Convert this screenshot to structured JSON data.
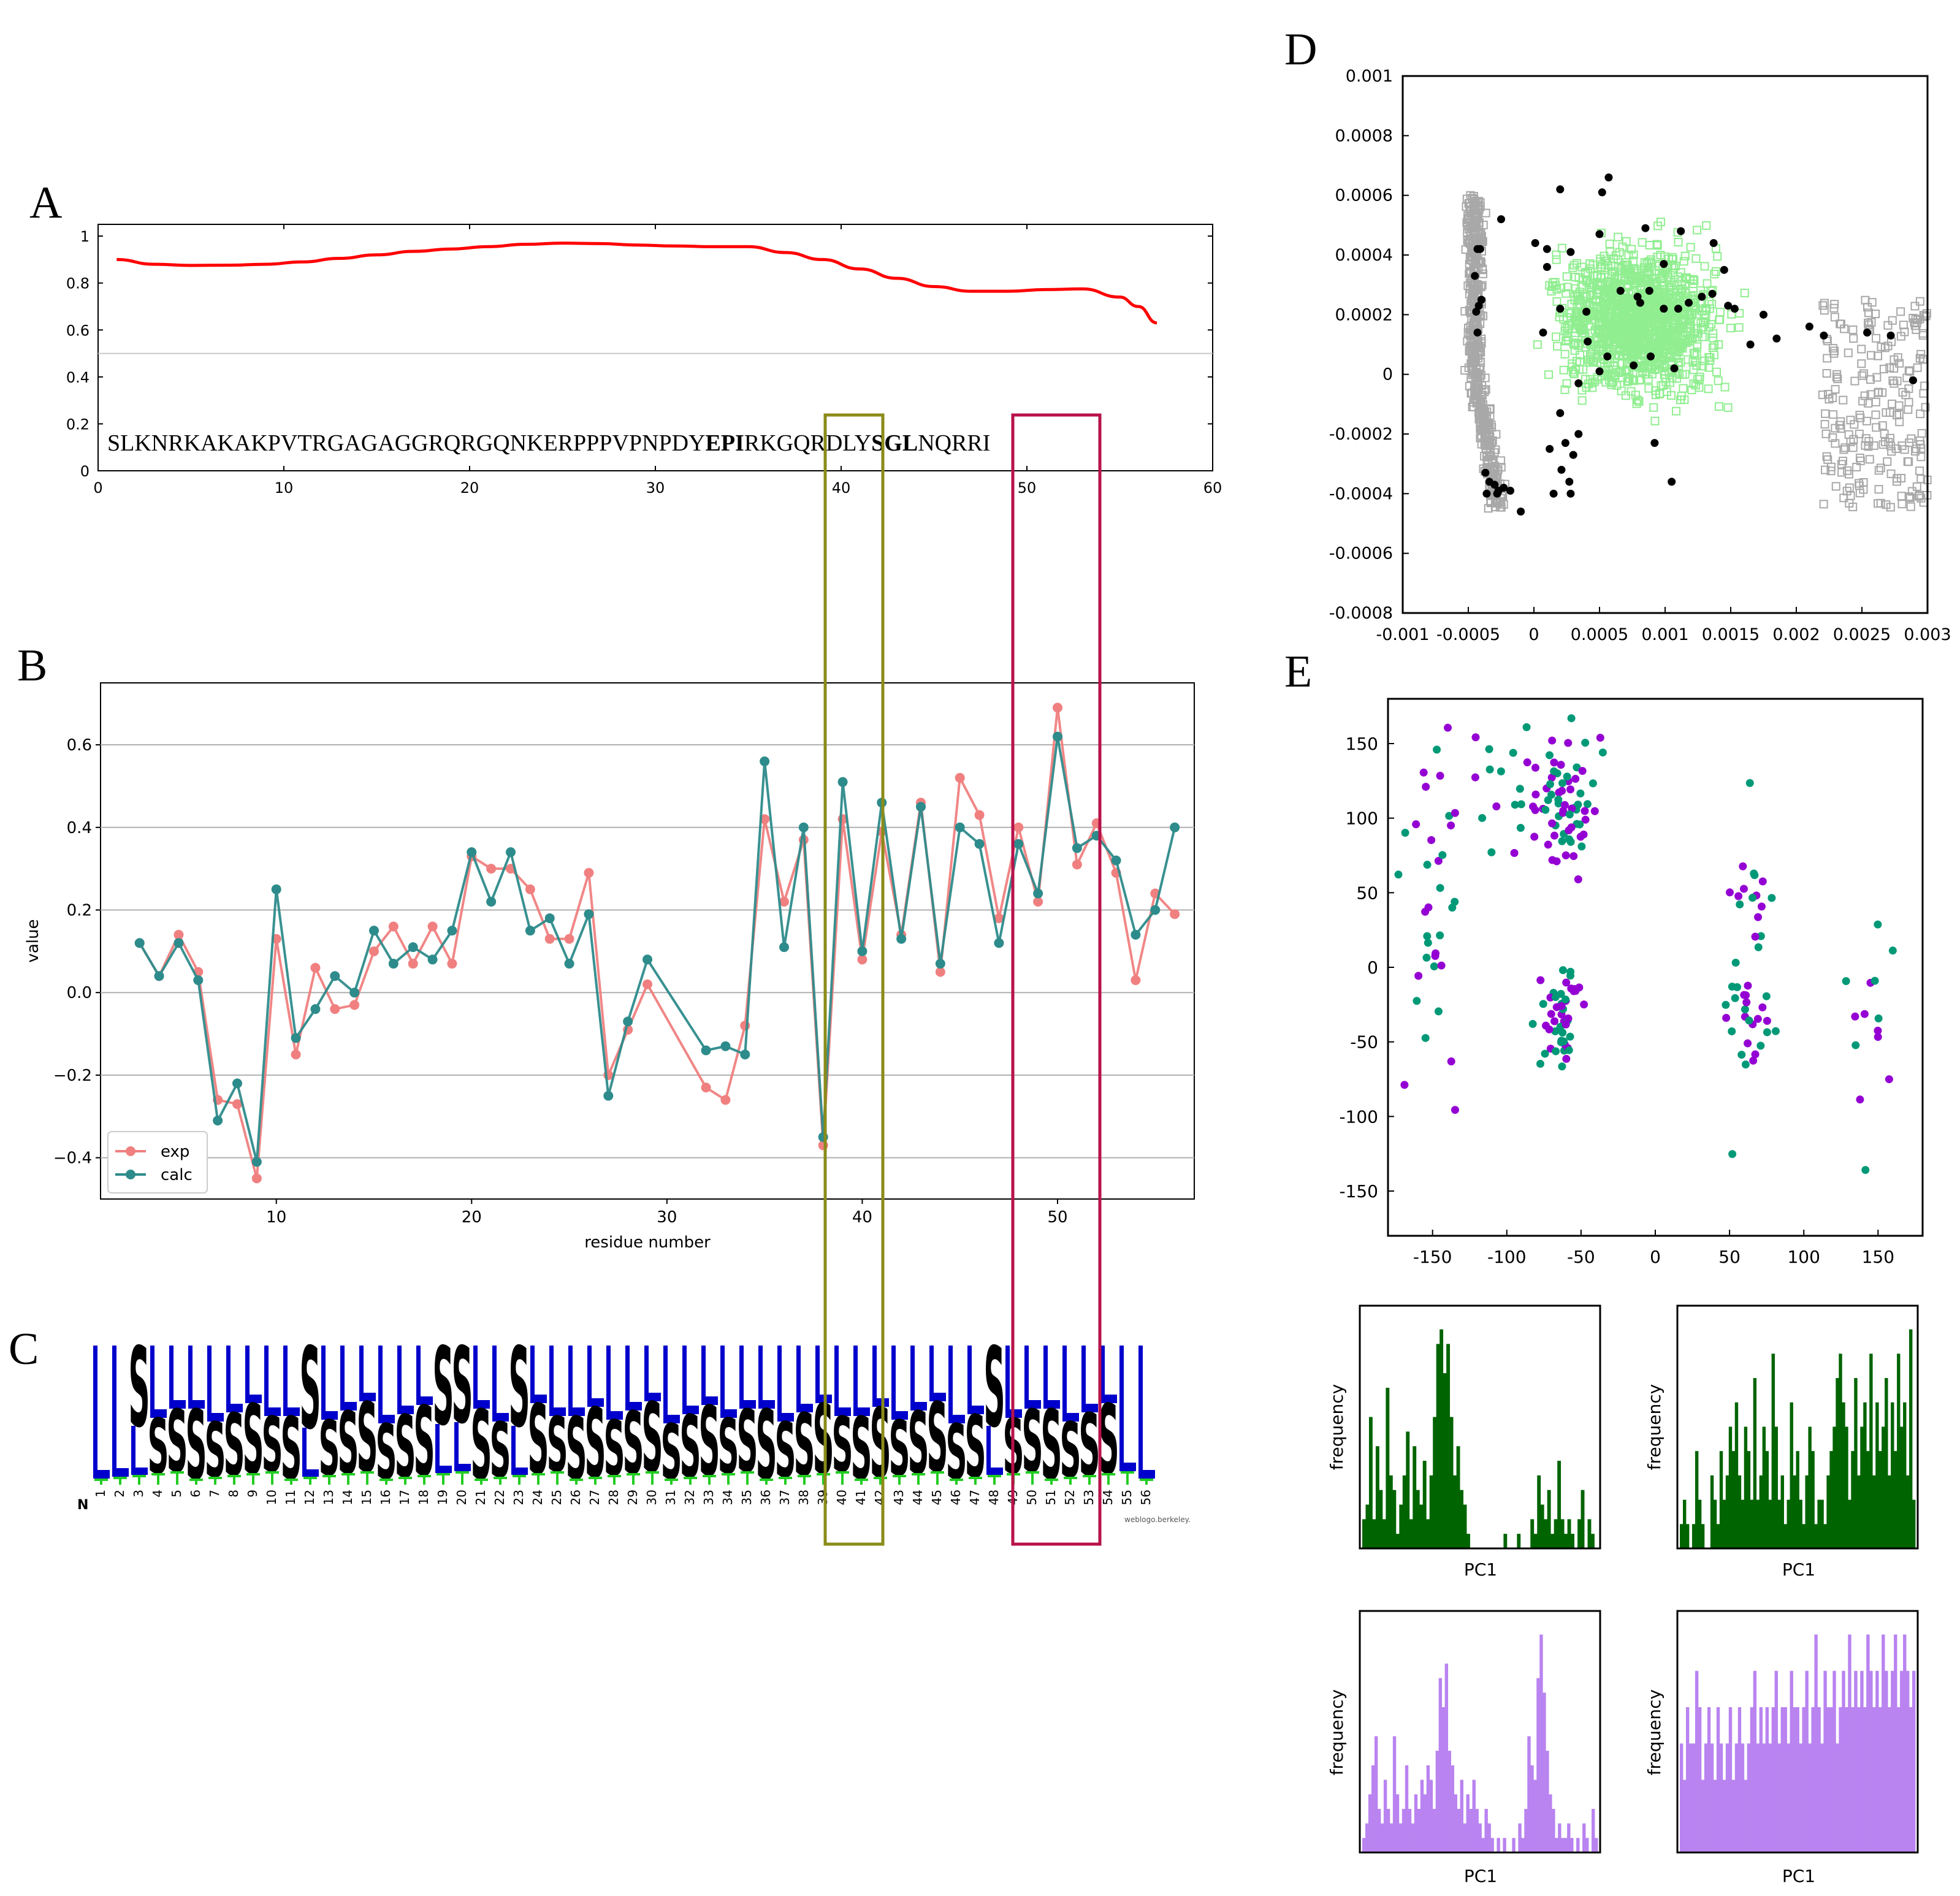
{
  "chart_data": [
    {
      "panel": "A",
      "type": "line",
      "xlim": [
        0,
        60
      ],
      "ylim": [
        0,
        1.05
      ],
      "xticks": [
        0,
        10,
        20,
        30,
        40,
        50,
        60
      ],
      "yticks": [
        0,
        0.2,
        0.4,
        0.6,
        0.8,
        1
      ],
      "threshold": 0.5,
      "colors": {
        "curve": "#ff0000",
        "threshold": "#c8c8c8"
      },
      "sequence": [
        "SLKNRKAKAKPVTRGAGAGGRQRGQNKERPPPVPNPDY",
        "EPI",
        "RKGQRDLY",
        "SGL",
        "NQRRI"
      ],
      "x": [
        1,
        3,
        5,
        7,
        9,
        11,
        13,
        15,
        17,
        19,
        21,
        23,
        25,
        27,
        29,
        31,
        33,
        35,
        37,
        39,
        41,
        43,
        45,
        47,
        49,
        51,
        53,
        55,
        56,
        57
      ],
      "y": [
        0.9,
        0.88,
        0.875,
        0.876,
        0.88,
        0.89,
        0.905,
        0.92,
        0.935,
        0.945,
        0.955,
        0.965,
        0.97,
        0.968,
        0.962,
        0.958,
        0.955,
        0.955,
        0.93,
        0.9,
        0.86,
        0.82,
        0.785,
        0.765,
        0.765,
        0.772,
        0.775,
        0.74,
        0.7,
        0.63
      ]
    },
    {
      "panel": "B",
      "type": "line",
      "xlabel": "residue number",
      "ylabel": "value",
      "xlim": [
        1,
        57
      ],
      "ylim": [
        -0.5,
        0.75
      ],
      "xticks": [
        10,
        20,
        30,
        40,
        50
      ],
      "yticks": [
        -0.4,
        -0.2,
        0.0,
        0.2,
        0.4,
        0.6
      ],
      "ytick_labels": [
        "−0.4",
        "−0.2",
        "0.0",
        "0.2",
        "0.4",
        "0.6"
      ],
      "legend": [
        "exp",
        "calc"
      ],
      "series": [
        {
          "name": "exp",
          "color": "#f08080",
          "x": [
            3,
            4,
            5,
            6,
            7,
            8,
            9,
            10,
            11,
            12,
            13,
            14,
            15,
            16,
            17,
            18,
            19,
            20,
            21,
            22,
            23,
            24,
            25,
            26,
            27,
            28,
            29,
            32,
            33,
            34,
            35,
            36,
            37,
            38,
            39,
            40,
            41,
            42,
            43,
            44,
            45,
            46,
            47,
            48,
            49,
            50,
            51,
            52,
            53,
            54,
            55,
            56
          ],
          "values": [
            0.12,
            0.04,
            0.14,
            0.05,
            -0.26,
            -0.27,
            -0.45,
            0.13,
            -0.15,
            0.06,
            -0.04,
            -0.03,
            0.1,
            0.16,
            0.07,
            0.16,
            0.07,
            0.33,
            0.3,
            0.3,
            0.25,
            0.13,
            0.13,
            0.29,
            -0.2,
            -0.09,
            0.02,
            -0.23,
            -0.26,
            -0.08,
            0.42,
            0.22,
            0.37,
            -0.37,
            0.42,
            0.08,
            0.39,
            0.14,
            0.46,
            0.05,
            0.52,
            0.43,
            0.18,
            0.4,
            0.22,
            0.69,
            0.31,
            0.41,
            0.29,
            0.03,
            0.24,
            0.19
          ]
        },
        {
          "name": "calc",
          "color": "#2e8b8b",
          "x": [
            3,
            4,
            5,
            6,
            7,
            8,
            9,
            10,
            11,
            12,
            13,
            14,
            15,
            16,
            17,
            18,
            19,
            20,
            21,
            22,
            23,
            24,
            25,
            26,
            27,
            28,
            29,
            32,
            33,
            34,
            35,
            36,
            37,
            38,
            39,
            40,
            41,
            42,
            43,
            44,
            45,
            46,
            47,
            48,
            49,
            50,
            51,
            52,
            53,
            54,
            55,
            56
          ],
          "values": [
            0.12,
            0.04,
            0.12,
            0.03,
            -0.31,
            -0.22,
            -0.41,
            0.25,
            -0.11,
            -0.04,
            0.04,
            0.0,
            0.15,
            0.07,
            0.11,
            0.08,
            0.15,
            0.34,
            0.22,
            0.34,
            0.15,
            0.18,
            0.07,
            0.19,
            -0.25,
            -0.07,
            0.08,
            -0.14,
            -0.13,
            -0.15,
            0.56,
            0.11,
            0.4,
            -0.35,
            0.51,
            0.1,
            0.46,
            0.13,
            0.45,
            0.07,
            0.4,
            0.36,
            0.12,
            0.36,
            0.24,
            0.62,
            0.35,
            0.38,
            0.32,
            0.14,
            0.2,
            0.4
          ]
        }
      ]
    },
    {
      "panel": "C",
      "type": "sequence-logo",
      "positions": [
        "1",
        "2",
        "3",
        "4",
        "5",
        "6",
        "7",
        "8",
        "9",
        "10",
        "11",
        "12",
        "13",
        "14",
        "15",
        "16",
        "17",
        "18",
        "19",
        "20",
        "21",
        "22",
        "23",
        "24",
        "25",
        "26",
        "27",
        "28",
        "29",
        "30",
        "31",
        "32",
        "33",
        "34",
        "35",
        "36",
        "37",
        "38",
        "39",
        "40",
        "41",
        "42",
        "43",
        "44",
        "45",
        "46",
        "47",
        "48",
        "49",
        "50",
        "51",
        "52",
        "53",
        "54",
        "55",
        "56"
      ],
      "dominant": [
        "L",
        "L",
        "S",
        "L",
        "L",
        "L",
        "L",
        "L",
        "L",
        "L",
        "L",
        "S",
        "L",
        "L",
        "L",
        "L",
        "L",
        "L",
        "S",
        "S",
        "L",
        "L",
        "S",
        "L",
        "L",
        "L",
        "L",
        "L",
        "L",
        "L",
        "L",
        "L",
        "L",
        "L",
        "L",
        "L",
        "L",
        "L",
        "L",
        "L",
        "L",
        "L",
        "L",
        "L",
        "L",
        "L",
        "L",
        "S",
        "L",
        "L",
        "L",
        "L",
        "L",
        "L",
        "L",
        "L"
      ],
      "secondary": [
        "",
        "",
        "L",
        "S",
        "S",
        "S",
        "S",
        "S",
        "S",
        "S",
        "S",
        "L",
        "S",
        "S",
        "S",
        "S",
        "S",
        "S",
        "L",
        "L",
        "S",
        "S",
        "L",
        "S",
        "S",
        "S",
        "S",
        "S",
        "S",
        "S",
        "S",
        "S",
        "S",
        "S",
        "S",
        "S",
        "S",
        "S",
        "S",
        "S",
        "S",
        "S",
        "S",
        "S",
        "S",
        "S",
        "S",
        "L",
        "S",
        "S",
        "S",
        "S",
        "S",
        "S",
        "",
        ""
      ],
      "n_label": "N",
      "credit": "weblogo.berkeley.",
      "colors": {
        "L": "#0000cc",
        "S": "#000000",
        "T": "#22cc22"
      }
    },
    {
      "panel": "D",
      "type": "scatter",
      "xlim": [
        -0.001,
        0.003
      ],
      "ylim": [
        -0.0008,
        0.001
      ],
      "xtick_labels": [
        "-0.001",
        "-0.0005",
        "0",
        "0.0005",
        "0.001",
        "0.0015",
        "0.002",
        "0.0025",
        "0.003"
      ],
      "ytick_labels": [
        "0.001",
        "0.0008",
        "0.0006",
        "0.0004",
        "0.0002",
        "0",
        "-0.0002",
        "-0.0004",
        "-0.0006",
        "-0.0008"
      ],
      "series_names": [
        "grey-squares",
        "green-squares",
        "black-points"
      ],
      "colors": {
        "grey": "#a8a8a8",
        "green": "#90ee90",
        "black": "#000000"
      },
      "black_points": [
        [
          -0.00043,
          0.00042
        ],
        [
          -0.00041,
          0.00042
        ],
        [
          -0.00045,
          0.00033
        ],
        [
          -0.00042,
          0.00023
        ],
        [
          -0.00044,
          0.00021
        ],
        [
          -0.0004,
          0.00025
        ],
        [
          -0.00043,
          0.00014
        ],
        [
          -0.00025,
          0.00052
        ],
        [
          -0.00037,
          -0.00033
        ],
        [
          -0.00034,
          -0.00036
        ],
        [
          -0.00036,
          -0.0004
        ],
        [
          -0.0003,
          -0.00037
        ],
        [
          -0.00027,
          -0.00039
        ],
        [
          -0.00023,
          -0.00038
        ],
        [
          -0.00028,
          -0.0004
        ],
        [
          -0.00018,
          -0.00039
        ],
        [
          -0.0001,
          -0.00046
        ],
        [
          0.00012,
          -0.00025
        ],
        [
          0.00021,
          -0.00032
        ],
        [
          0.00027,
          -0.00036
        ],
        [
          0.00028,
          -0.0004
        ],
        [
          0.00015,
          -0.0004
        ],
        [
          0.0002,
          0.00062
        ],
        [
          0.00052,
          0.00061
        ],
        [
          0.00057,
          0.00066
        ],
        [
          1e-05,
          0.00044
        ],
        [
          0.0001,
          0.00042
        ],
        [
          0.0001,
          0.00036
        ],
        [
          0.00028,
          0.00041
        ],
        [
          0.0005,
          0.00047
        ],
        [
          0.00085,
          0.00049
        ],
        [
          0.00099,
          0.00037
        ],
        [
          0.00112,
          0.00048
        ],
        [
          0.00137,
          0.00044
        ],
        [
          0.00145,
          0.00035
        ],
        [
          0.00153,
          0.00022
        ],
        [
          0.00175,
          0.0002
        ],
        [
          0.0002,
          0.00022
        ],
        [
          0.0004,
          0.00021
        ],
        [
          0.00066,
          0.00028
        ],
        [
          0.00079,
          0.00026
        ],
        [
          0.00081,
          0.00024
        ],
        [
          0.00088,
          0.00028
        ],
        [
          0.00099,
          0.00022
        ],
        [
          0.0011,
          0.00022
        ],
        [
          0.00118,
          0.00024
        ],
        [
          0.00128,
          0.00026
        ],
        [
          0.00136,
          0.00027
        ],
        [
          0.00148,
          0.00023
        ],
        [
          0.00165,
          0.0001
        ],
        [
          0.00185,
          0.00012
        ],
        [
          0.0021,
          0.00016
        ],
        [
          0.00221,
          0.00013
        ],
        [
          0.00254,
          0.00014
        ],
        [
          0.00272,
          0.00013
        ],
        [
          0.00289,
          -2e-05
        ],
        [
          7e-05,
          0.00014
        ],
        [
          0.00041,
          0.00011
        ],
        [
          0.0005,
          1e-05
        ],
        [
          0.00056,
          6e-05
        ],
        [
          0.00076,
          3e-05
        ],
        [
          0.00089,
          6e-05
        ],
        [
          0.00107,
          2e-05
        ],
        [
          0.00034,
          -3e-05
        ],
        [
          0.0002,
          -0.00013
        ],
        [
          0.00024,
          -0.00023
        ],
        [
          0.0003,
          -0.00027
        ],
        [
          0.00034,
          -0.0002
        ],
        [
          0.00092,
          -0.00023
        ],
        [
          0.00105,
          -0.00036
        ]
      ]
    },
    {
      "panel": "E",
      "type": "scatter",
      "xlim": [
        -180,
        180
      ],
      "ylim": [
        -180,
        180
      ],
      "xtick_labels": [
        "-150",
        "-100",
        "-50",
        "0",
        "50",
        "100",
        "150"
      ],
      "ytick_labels": [
        "150",
        "100",
        "50",
        "0",
        "-50",
        "-100",
        "-150"
      ],
      "series_names": [
        "purple",
        "teal"
      ],
      "colors": {
        "purple": "#9400d3",
        "teal": "#009977"
      }
    },
    {
      "panel": "E-hist",
      "type": "bar",
      "xlabel": "PC1",
      "ylabel": "frequency",
      "panels": [
        {
          "name": "hist-green-left",
          "color": "#006400",
          "values": [
            2,
            3,
            9,
            2,
            7,
            4,
            2,
            11,
            5,
            4,
            1,
            3,
            5,
            8,
            2,
            7,
            4,
            3,
            6,
            2,
            5,
            9,
            14,
            15,
            12,
            14,
            9,
            5,
            7,
            4,
            3,
            1,
            0,
            0,
            0,
            0,
            0,
            0,
            0,
            0,
            0,
            0,
            1,
            0,
            0,
            0,
            1,
            0,
            0,
            0,
            2,
            1,
            5,
            3,
            2,
            4,
            1,
            2,
            6,
            2,
            1,
            2,
            1,
            0,
            2,
            4,
            0,
            2,
            1,
            0
          ]
        },
        {
          "name": "hist-green-right",
          "color": "#006400",
          "values": [
            1,
            2,
            1,
            0,
            1,
            4,
            2,
            1,
            0,
            0,
            3,
            2,
            1,
            4,
            2,
            3,
            5,
            4,
            6,
            3,
            2,
            5,
            4,
            2,
            7,
            2,
            3,
            5,
            4,
            2,
            8,
            5,
            2,
            3,
            1,
            2,
            6,
            3,
            4,
            2,
            1,
            3,
            5,
            4,
            1,
            2,
            2,
            1,
            3,
            4,
            5,
            7,
            8,
            6,
            5,
            2,
            4,
            7,
            3,
            5,
            6,
            4,
            8,
            3,
            6,
            4,
            5,
            7,
            3,
            6,
            4,
            8,
            5,
            6,
            3,
            9,
            2
          ]
        },
        {
          "name": "hist-purple-left",
          "color": "#b983f0",
          "values": [
            1,
            2,
            4,
            6,
            8,
            3,
            2,
            5,
            3,
            2,
            8,
            4,
            2,
            3,
            6,
            3,
            2,
            4,
            3,
            5,
            4,
            6,
            5,
            3,
            7,
            12,
            10,
            13,
            7,
            6,
            4,
            3,
            5,
            2,
            4,
            3,
            5,
            3,
            2,
            1,
            3,
            2,
            1,
            0,
            1,
            0,
            1,
            0,
            0,
            1,
            0,
            2,
            1,
            3,
            8,
            6,
            5,
            12,
            15,
            11,
            7,
            4,
            3,
            1,
            2,
            1,
            1,
            2,
            1,
            0,
            1,
            0,
            2,
            1,
            0,
            3,
            1
          ]
        },
        {
          "name": "hist-purple-right",
          "color": "#b983f0",
          "values": [
            3,
            2,
            4,
            3,
            3,
            5,
            4,
            2,
            3,
            4,
            3,
            2,
            4,
            3,
            2,
            3,
            4,
            2,
            3,
            4,
            3,
            2,
            3,
            4,
            5,
            3,
            4,
            3,
            4,
            3,
            4,
            5,
            3,
            4,
            4,
            3,
            5,
            4,
            4,
            3,
            4,
            5,
            3,
            4,
            6,
            4,
            3,
            5,
            4,
            4,
            5,
            3,
            4,
            5,
            4,
            6,
            4,
            5,
            4,
            5,
            4,
            6,
            5,
            4,
            5,
            4,
            6,
            5,
            4,
            5,
            6,
            4,
            5,
            6,
            5,
            4,
            5
          ]
        }
      ]
    }
  ],
  "labels": {
    "A": "A",
    "B": "B",
    "C": "C",
    "D": "D",
    "E": "E"
  },
  "highlight_colors": {
    "olive": "#8b8b1a",
    "crimson": "#b8124a"
  }
}
